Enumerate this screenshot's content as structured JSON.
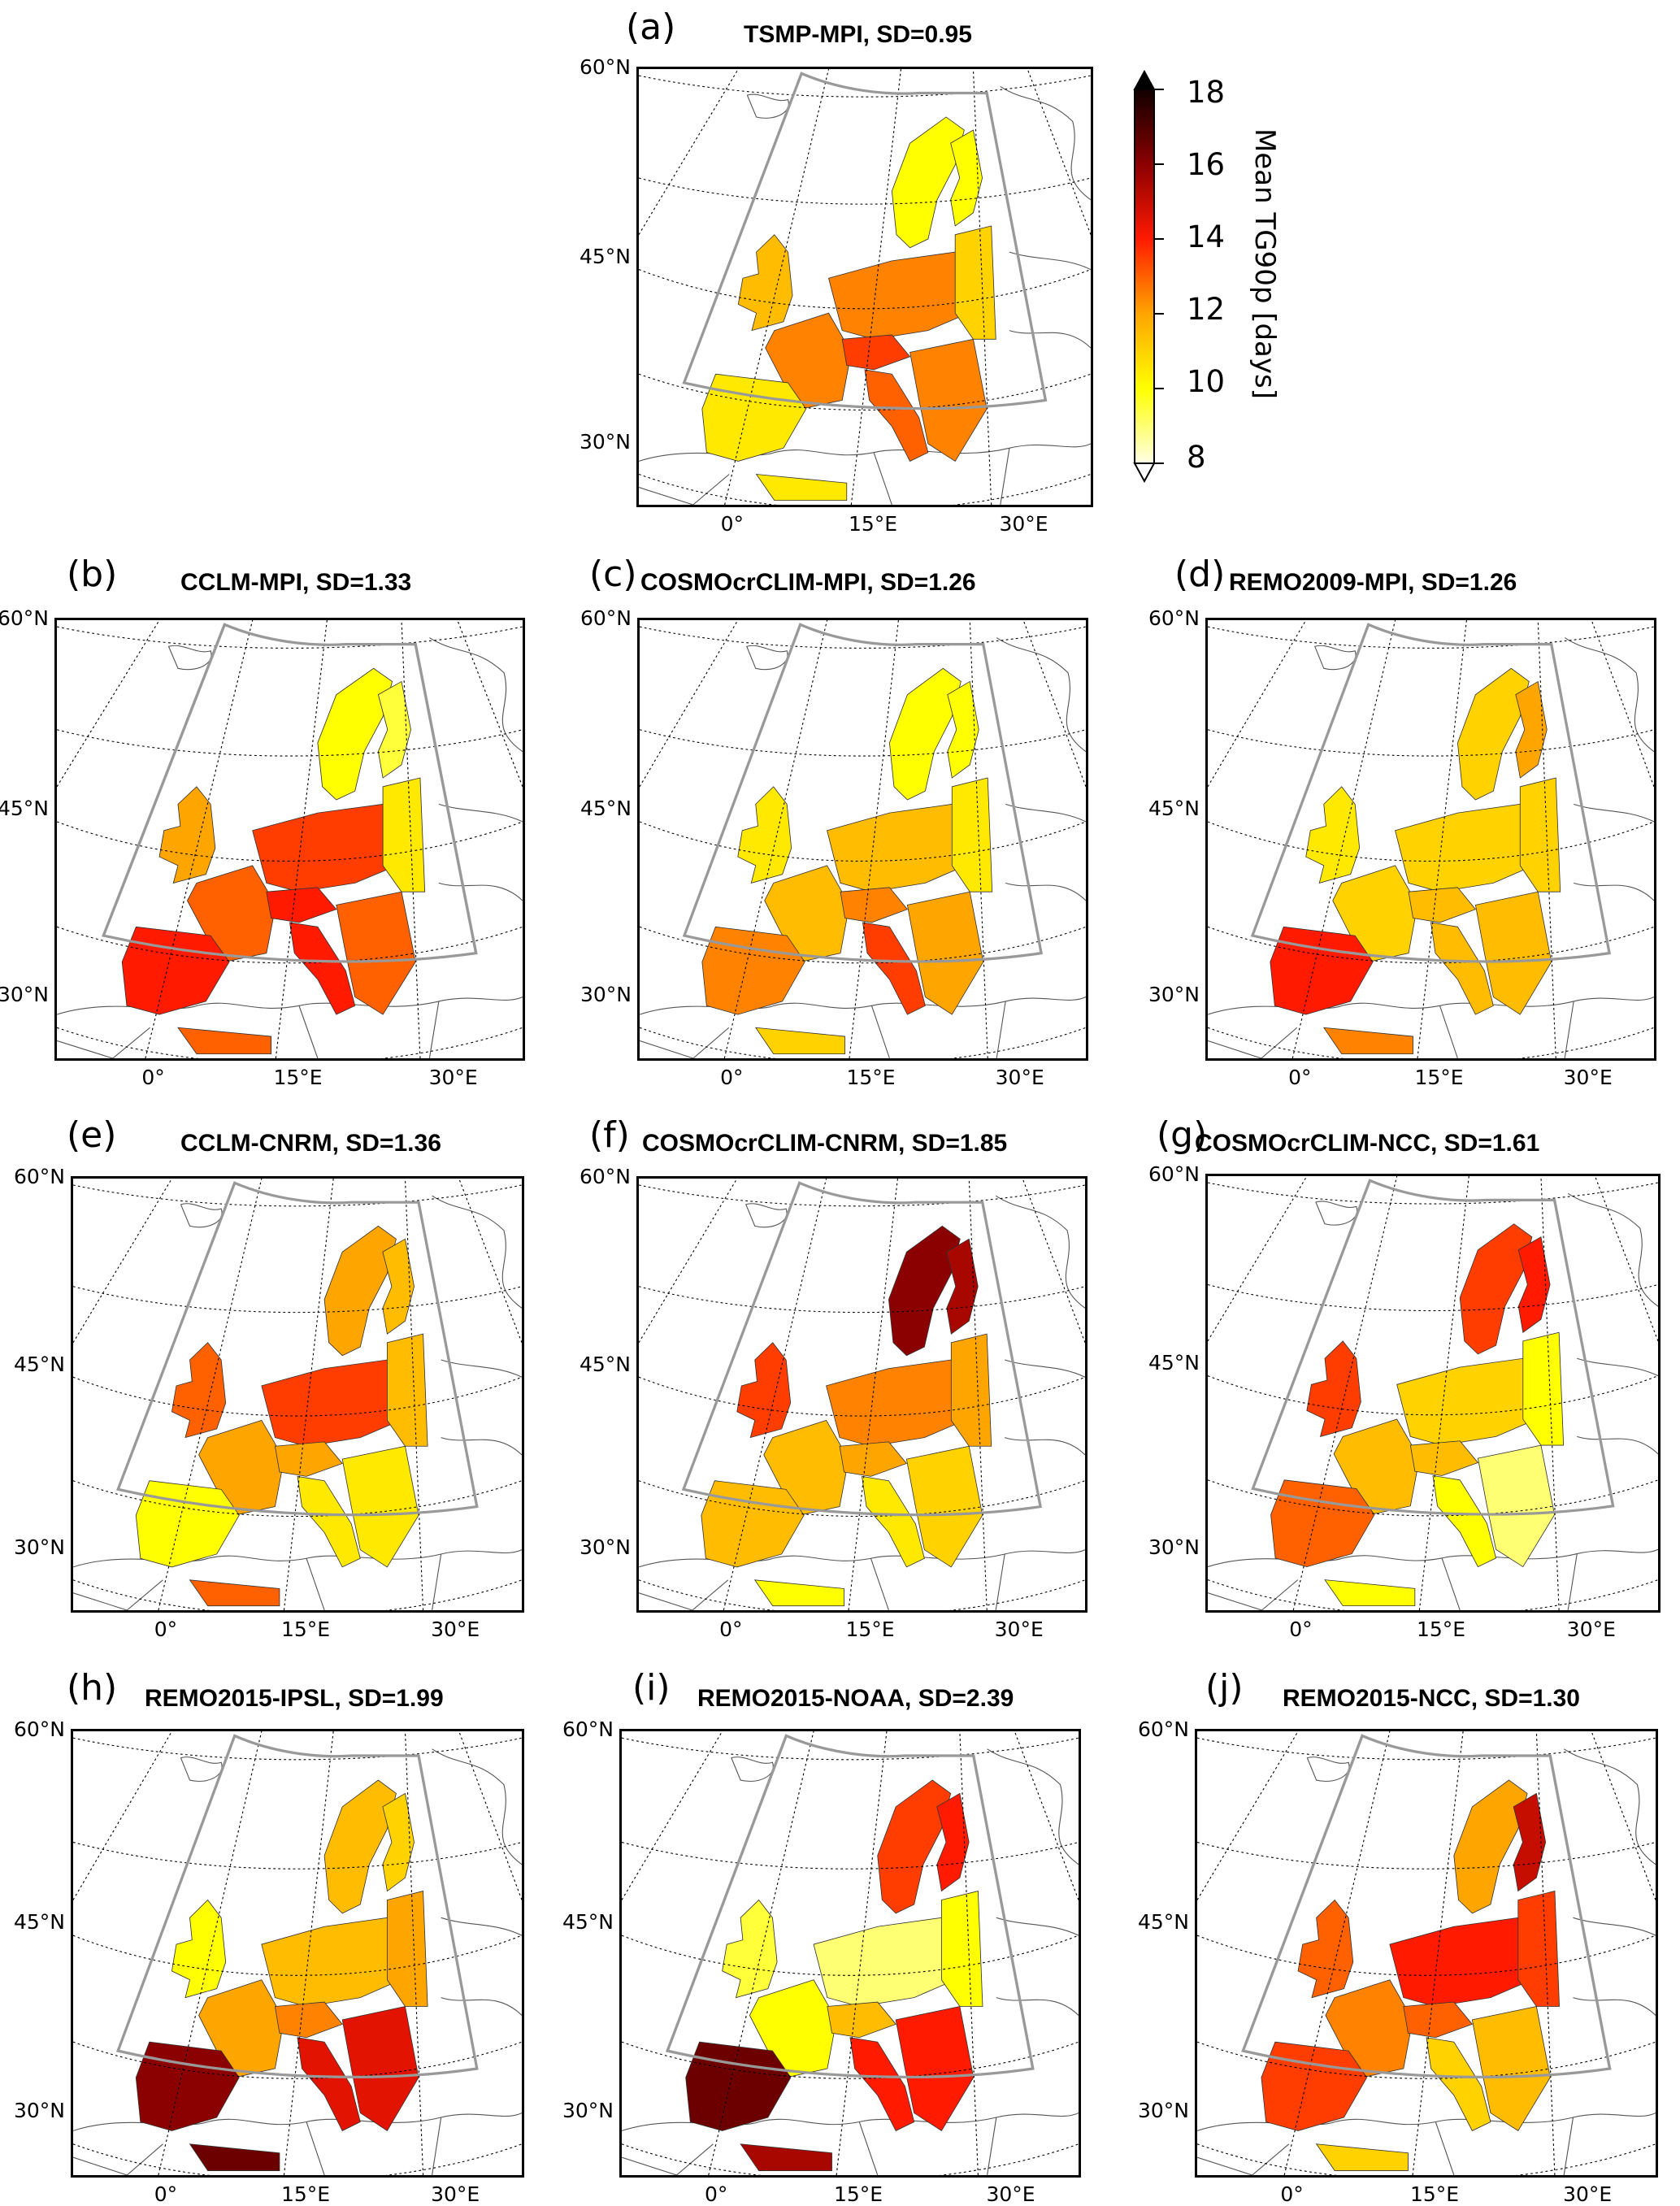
{
  "figure": {
    "projection_note": "Lambert conformal Europe, EURO-CORDEX domain outline"
  },
  "colorbar": {
    "label": "Mean TG90p [days]",
    "ticks": [
      "18",
      "16",
      "14",
      "12",
      "10",
      "8"
    ],
    "min": 8,
    "max": 18,
    "extend": "both",
    "colormap": "hot_r",
    "stops": [
      "#ffffe6",
      "#ffff00",
      "#ffa500",
      "#ff3000",
      "#b00000",
      "#400000",
      "#100000"
    ]
  },
  "axis_labels": {
    "lat": [
      "60°N",
      "45°N",
      "30°N"
    ],
    "lon": [
      "0°",
      "15°E",
      "30°E"
    ]
  },
  "chart_data": [
    {
      "type": "heatmap",
      "panel": "(a)",
      "title": "TSMP-MPI, SD=0.95",
      "model": "TSMP-MPI",
      "sd": 0.95,
      "value_range": [
        8,
        18
      ],
      "units": "days",
      "regions": {
        "scandinavia": 10.0,
        "finland": 10.0,
        "uk_ireland": 11.5,
        "france": 12.5,
        "central_europe": 12.5,
        "alps": 13.5,
        "iberia": 10.5,
        "italy": 13.0,
        "balkans": 12.5,
        "eastern_europe": 11.0,
        "north_africa": 10.5
      }
    },
    {
      "type": "heatmap",
      "panel": "(b)",
      "title": "CCLM-MPI, SD=1.33",
      "model": "CCLM-MPI",
      "sd": 1.33,
      "value_range": [
        8,
        18
      ],
      "units": "days",
      "regions": {
        "scandinavia": 10.0,
        "finland": 9.5,
        "uk_ireland": 12.0,
        "france": 13.0,
        "central_europe": 13.5,
        "alps": 14.0,
        "iberia": 14.0,
        "italy": 14.0,
        "balkans": 13.0,
        "eastern_europe": 10.5,
        "north_africa": 13.0
      }
    },
    {
      "type": "heatmap",
      "panel": "(c)",
      "title": "COSMOcrCLIM-MPI, SD=1.26",
      "model": "COSMOcrCLIM-MPI",
      "sd": 1.26,
      "value_range": [
        8,
        18
      ],
      "units": "days",
      "regions": {
        "scandinavia": 10.0,
        "finland": 10.0,
        "uk_ireland": 10.5,
        "france": 11.5,
        "central_europe": 11.5,
        "alps": 12.5,
        "iberia": 12.5,
        "italy": 13.5,
        "balkans": 12.0,
        "eastern_europe": 10.5,
        "north_africa": 11.0
      }
    },
    {
      "type": "heatmap",
      "panel": "(d)",
      "title": "REMO2009-MPI, SD=1.26",
      "model": "REMO2009-MPI",
      "sd": 1.26,
      "value_range": [
        8,
        18
      ],
      "units": "days",
      "regions": {
        "scandinavia": 11.0,
        "finland": 12.0,
        "uk_ireland": 10.5,
        "france": 11.0,
        "central_europe": 11.0,
        "alps": 11.5,
        "iberia": 14.0,
        "italy": 11.5,
        "balkans": 11.5,
        "eastern_europe": 11.0,
        "north_africa": 12.5
      }
    },
    {
      "type": "heatmap",
      "panel": "(e)",
      "title": "CCLM-CNRM, SD=1.36",
      "model": "CCLM-CNRM",
      "sd": 1.36,
      "value_range": [
        8,
        18
      ],
      "units": "days",
      "regions": {
        "scandinavia": 12.0,
        "finland": 11.5,
        "uk_ireland": 13.0,
        "france": 12.0,
        "central_europe": 13.5,
        "alps": 12.0,
        "iberia": 10.0,
        "italy": 10.5,
        "balkans": 10.5,
        "eastern_europe": 11.5,
        "north_africa": 13.0
      }
    },
    {
      "type": "heatmap",
      "panel": "(f)",
      "title": "COSMOcrCLIM-CNRM, SD=1.85",
      "model": "COSMOcrCLIM-CNRM",
      "sd": 1.85,
      "value_range": [
        8,
        18
      ],
      "units": "days",
      "regions": {
        "scandinavia": 16.0,
        "finland": 15.5,
        "uk_ireland": 13.5,
        "france": 11.5,
        "central_europe": 12.5,
        "alps": 12.0,
        "iberia": 11.5,
        "italy": 10.5,
        "balkans": 11.0,
        "eastern_europe": 12.0,
        "north_africa": 10.0
      }
    },
    {
      "type": "heatmap",
      "panel": "(g)",
      "title": "COSMOcrCLIM-NCC, SD=1.61",
      "model": "COSMOcrCLIM-NCC",
      "sd": 1.61,
      "value_range": [
        8,
        18
      ],
      "units": "days",
      "regions": {
        "scandinavia": 13.5,
        "finland": 14.0,
        "uk_ireland": 13.5,
        "france": 11.5,
        "central_europe": 11.0,
        "alps": 11.5,
        "iberia": 13.0,
        "italy": 10.0,
        "balkans": 9.0,
        "eastern_europe": 10.0,
        "north_africa": 10.0
      }
    },
    {
      "type": "heatmap",
      "panel": "(h)",
      "title": "REMO2015-IPSL, SD=1.99",
      "model": "REMO2015-IPSL",
      "sd": 1.99,
      "value_range": [
        8,
        18
      ],
      "units": "days",
      "regions": {
        "scandinavia": 11.5,
        "finland": 11.0,
        "uk_ireland": 10.0,
        "france": 12.0,
        "central_europe": 11.5,
        "alps": 12.5,
        "iberia": 16.0,
        "italy": 14.5,
        "balkans": 14.5,
        "eastern_europe": 12.0,
        "north_africa": 16.5
      }
    },
    {
      "type": "heatmap",
      "panel": "(i)",
      "title": "REMO2015-NOAA, SD=2.39",
      "model": "REMO2015-NOAA",
      "sd": 2.39,
      "value_range": [
        8,
        18
      ],
      "units": "days",
      "regions": {
        "scandinavia": 13.5,
        "finland": 14.0,
        "uk_ireland": 9.5,
        "france": 10.0,
        "central_europe": 9.0,
        "alps": 11.5,
        "iberia": 16.5,
        "italy": 14.0,
        "balkans": 14.0,
        "eastern_europe": 10.0,
        "north_africa": 15.5
      }
    },
    {
      "type": "heatmap",
      "panel": "(j)",
      "title": "REMO2015-NCC, SD=1.30",
      "model": "REMO2015-NCC",
      "sd": 1.3,
      "value_range": [
        8,
        18
      ],
      "units": "days",
      "regions": {
        "scandinavia": 12.0,
        "finland": 15.0,
        "uk_ireland": 13.0,
        "france": 12.5,
        "central_europe": 14.0,
        "alps": 13.0,
        "iberia": 13.5,
        "italy": 11.0,
        "balkans": 11.5,
        "eastern_europe": 13.5,
        "north_africa": 11.0
      }
    }
  ]
}
